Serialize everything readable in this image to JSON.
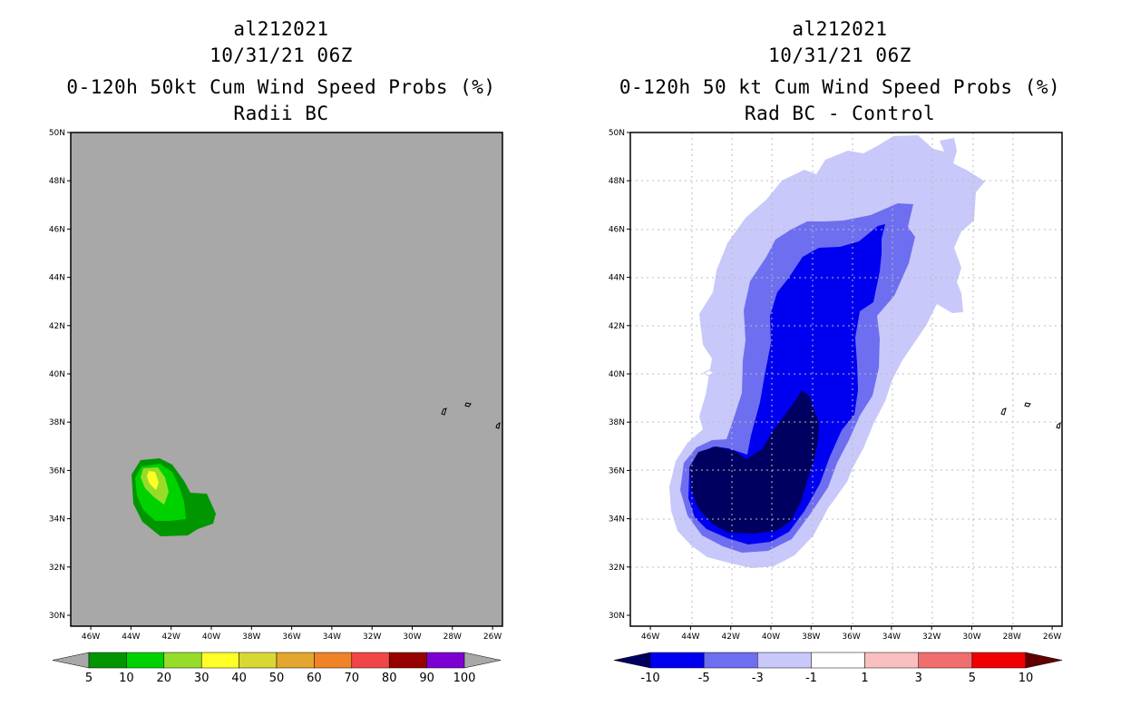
{
  "panels": [
    {
      "id": "left",
      "storm": "al212021",
      "datetime": "10/31/21 06Z",
      "product": "0-120h 50kt Cum Wind Speed Probs (%)",
      "subtitle": "Radii BC",
      "background": "#a8a8a8",
      "gridlines": false,
      "colorbar": {
        "labels": [
          "5",
          "10",
          "20",
          "30",
          "40",
          "50",
          "60",
          "70",
          "80",
          "90",
          "100"
        ],
        "colors": [
          "#009600",
          "#00d200",
          "#98dc2a",
          "#ffff27",
          "#d8d832",
          "#e3a62e",
          "#f08228",
          "#f04646",
          "#960000",
          "#7d00d3"
        ],
        "end_colors": [
          "#a8a8a8",
          "#a8a8a8"
        ]
      }
    },
    {
      "id": "right",
      "storm": "al212021",
      "datetime": "10/31/21 06Z",
      "product": "0-120h 50 kt Cum Wind Speed Probs (%)",
      "subtitle": "Rad BC - Control",
      "background": "#ffffff",
      "gridlines": true,
      "colorbar": {
        "labels": [
          "-10",
          "-5",
          "-3",
          "-1",
          "1",
          "3",
          "5",
          "10"
        ],
        "colors": [
          "#0000f0",
          "#6e6ef0",
          "#c8c8fa",
          "#ffffff",
          "#fac0c0",
          "#f06e6e",
          "#f00000"
        ],
        "end_colors": [
          "#000060",
          "#600000"
        ]
      }
    }
  ],
  "axes": {
    "lat_labels": [
      "50N",
      "48N",
      "46N",
      "44N",
      "42N",
      "40N",
      "38N",
      "36N",
      "34N",
      "32N",
      "30N"
    ],
    "lon_labels": [
      "46W",
      "44W",
      "42W",
      "40W",
      "38W",
      "36W",
      "34W",
      "32W",
      "30W",
      "28W",
      "26W"
    ]
  }
}
